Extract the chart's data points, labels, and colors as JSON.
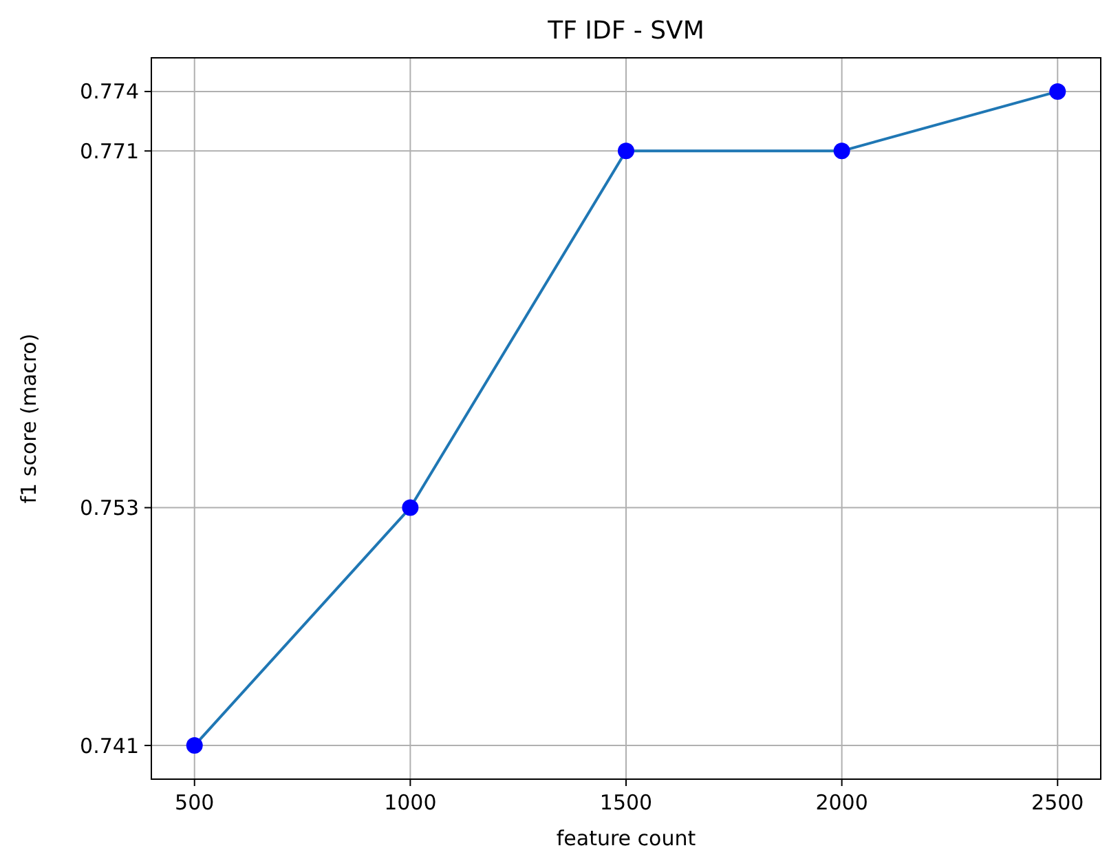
{
  "chart_data": {
    "type": "line",
    "title": "TF IDF - SVM",
    "xlabel": "feature count",
    "ylabel": "f1 score (macro)",
    "x": [
      500,
      1000,
      1500,
      2000,
      2500
    ],
    "series": [
      {
        "color": "#1f77b4",
        "values": [
          0.741,
          0.753,
          0.771,
          0.771,
          0.774
        ]
      },
      {
        "type": "scatter",
        "color": "#0000ff",
        "values": [
          0.741,
          0.753,
          0.771,
          0.771,
          0.774
        ]
      }
    ],
    "xlim": [
      400,
      2600
    ],
    "xticks": [
      500,
      1000,
      1500,
      2000,
      2500
    ],
    "ylim": [
      0.7393,
      0.7757
    ],
    "yticks": [
      0.741,
      0.753,
      0.771,
      0.774
    ],
    "grid": true
  }
}
